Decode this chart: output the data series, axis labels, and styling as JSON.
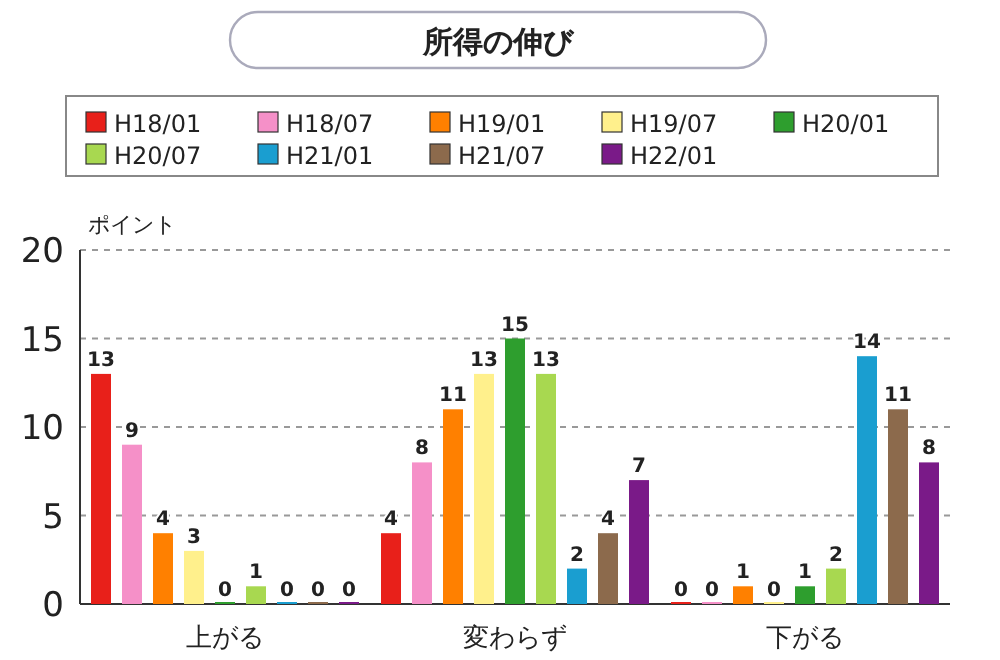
{
  "chart_data": {
    "type": "bar",
    "title": "所得の伸び",
    "ylabel": "ポイント",
    "categories": [
      "上がる",
      "変わらず",
      "下がる"
    ],
    "series": [
      {
        "name": "H18/01",
        "color": "#e8201a",
        "values": [
          13,
          4,
          0
        ]
      },
      {
        "name": "H18/07",
        "color": "#f590c8",
        "values": [
          9,
          8,
          0
        ]
      },
      {
        "name": "H19/01",
        "color": "#ff8000",
        "values": [
          4,
          11,
          1
        ]
      },
      {
        "name": "H19/07",
        "color": "#fff08c",
        "values": [
          3,
          13,
          0
        ]
      },
      {
        "name": "H20/01",
        "color": "#2e9e2e",
        "values": [
          0,
          15,
          1
        ]
      },
      {
        "name": "H20/07",
        "color": "#a8d850",
        "values": [
          1,
          13,
          2
        ]
      },
      {
        "name": "H21/01",
        "color": "#1a9ed0",
        "values": [
          0,
          2,
          14
        ]
      },
      {
        "name": "H21/07",
        "color": "#8c6a4c",
        "values": [
          0,
          4,
          11
        ]
      },
      {
        "name": "H22/01",
        "color": "#7a1a88",
        "values": [
          0,
          7,
          8
        ]
      }
    ],
    "ylim": [
      0,
      20
    ],
    "yticks": [
      0,
      5,
      10,
      15,
      20
    ],
    "grid": "y",
    "legend": "top",
    "data_labels": true
  }
}
